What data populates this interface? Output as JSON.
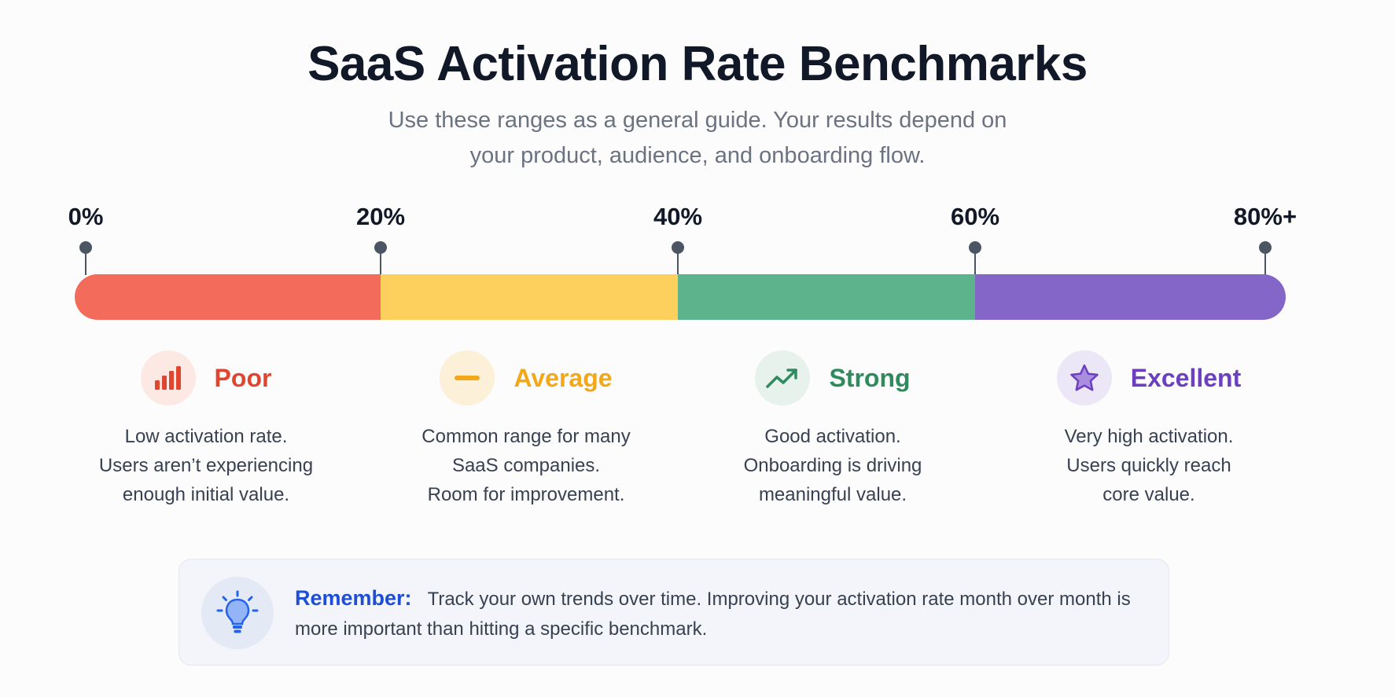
{
  "title": "SaaS Activation Rate Benchmarks",
  "subtitle_lines": [
    "Use these ranges as a general guide. Your results depend on",
    "your product, audience, and onboarding flow."
  ],
  "scale": {
    "ticks": [
      {
        "value": 0,
        "label": "0%"
      },
      {
        "value": 20,
        "label": "20%"
      },
      {
        "value": 40,
        "label": "40%"
      },
      {
        "value": 60,
        "label": "60%"
      },
      {
        "value": 80,
        "label": "80%+"
      }
    ],
    "segments": [
      {
        "from": 0,
        "to": 20,
        "color": "#f26b5b"
      },
      {
        "from": 20,
        "to": 40,
        "color": "#fdcf5d"
      },
      {
        "from": 40,
        "to": 60,
        "color": "#5db38c"
      },
      {
        "from": 60,
        "to": 80,
        "color": "#8466c9"
      }
    ]
  },
  "categories": [
    {
      "name": "Poor",
      "icon": "bar-chart-icon",
      "color": "#e0452f",
      "icon_bg": "#fde9e3",
      "desc_lines": [
        "Low activation rate.",
        "Users aren’t experiencing",
        "enough initial value."
      ]
    },
    {
      "name": "Average",
      "icon": "minus-icon",
      "color": "#f2a818",
      "icon_bg": "#fdf0d8",
      "desc_lines": [
        "Common range for many",
        "SaaS companies.",
        "Room for improvement."
      ]
    },
    {
      "name": "Strong",
      "icon": "trend-up-icon",
      "color": "#2f8a5e",
      "icon_bg": "#e7f2ec",
      "desc_lines": [
        "Good activation.",
        "Onboarding is driving",
        "meaningful value."
      ]
    },
    {
      "name": "Excellent",
      "icon": "star-icon",
      "color": "#6b3fc0",
      "icon_bg": "#ece7f7",
      "desc_lines": [
        "Very high activation.",
        "Users quickly reach",
        "core value."
      ]
    }
  ],
  "callout": {
    "label": "Remember:",
    "text": "Track your own trends over time. Improving your activation rate month over month is more important than hitting a specific benchmark.",
    "icon": "lightbulb-icon"
  }
}
